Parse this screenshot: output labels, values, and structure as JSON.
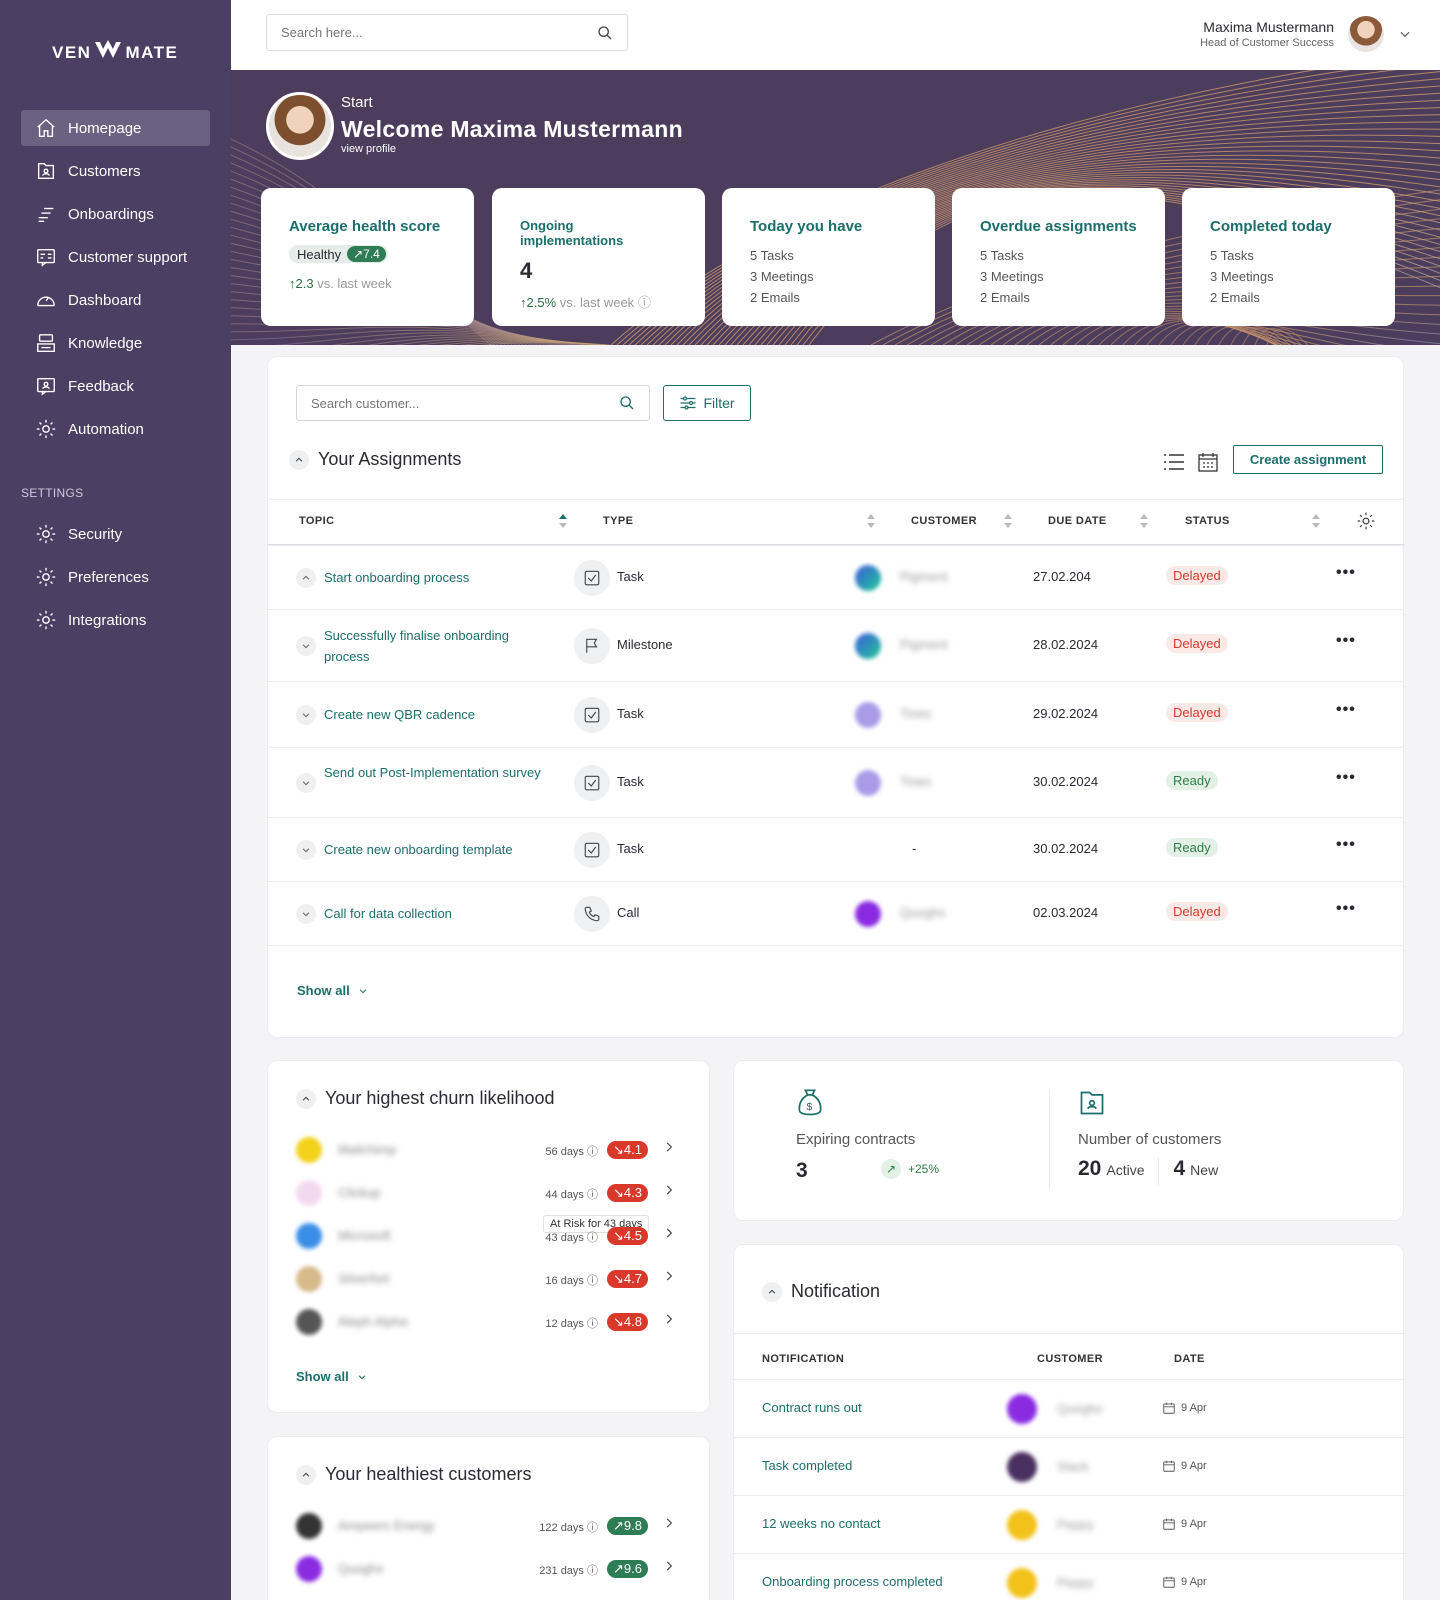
{
  "brand": {
    "logo_left": "VEN",
    "logo_right": "MATE"
  },
  "sidebar": {
    "items": [
      {
        "label": "Homepage",
        "icon": "home-icon"
      },
      {
        "label": "Customers",
        "icon": "customers-icon"
      },
      {
        "label": "Onboardings",
        "icon": "onboardings-icon"
      },
      {
        "label": "Customer support",
        "icon": "support-icon"
      },
      {
        "label": "Dashboard",
        "icon": "dashboard-icon"
      },
      {
        "label": "Knowledge",
        "icon": "knowledge-icon"
      },
      {
        "label": "Feedback",
        "icon": "feedback-icon"
      },
      {
        "label": "Automation",
        "icon": "automation-icon"
      }
    ],
    "settings_label": "SETTINGS",
    "settings_items": [
      {
        "label": "Security",
        "icon": "gear-icon"
      },
      {
        "label": "Preferences",
        "icon": "gear-icon"
      },
      {
        "label": "Integrations",
        "icon": "gear-icon"
      }
    ]
  },
  "topbar": {
    "search_placeholder": "Search here...",
    "user_name": "Maxima Mustermann",
    "user_role": "Head of Customer Success"
  },
  "hero": {
    "start": "Start",
    "welcome": "Welcome Maxima Mustermann",
    "view_profile": "view profile"
  },
  "stats": {
    "health": {
      "title": "Average health score",
      "label": "Healthy",
      "score": "7.4",
      "delta": "2.3",
      "delta_label": "vs. last week"
    },
    "ongoing": {
      "title": "Ongoing implementations",
      "value": "4",
      "delta": "2.5%",
      "delta_label": "vs. last week"
    },
    "today": {
      "title": "Today you have",
      "lines": [
        "5 Tasks",
        "3 Meetings",
        "2 Emails"
      ]
    },
    "overdue": {
      "title": "Overdue assignments",
      "lines": [
        "5 Tasks",
        "3 Meetings",
        "2 Emails"
      ]
    },
    "completed": {
      "title": "Completed today",
      "lines": [
        "5 Tasks",
        "3 Meetings",
        "2 Emails"
      ]
    }
  },
  "assignments": {
    "search_placeholder": "Search customer...",
    "filter_label": "Filter",
    "title": "Your Assignments",
    "create_label": "Create assignment",
    "columns": [
      "TOPIC",
      "TYPE",
      "CUSTOMER",
      "DUE DATE",
      "STATUS"
    ],
    "rows": [
      {
        "topic": "Start onboarding process",
        "type": "Task",
        "customer": "Pigment",
        "due": "27.02.204",
        "status": "Delayed"
      },
      {
        "topic": "Successfully finalise onboarding process",
        "type": "Milestone",
        "customer": "Pigment",
        "due": "28.02.2024",
        "status": "Delayed"
      },
      {
        "topic": "Create new QBR cadence",
        "type": "Task",
        "customer": "Tines",
        "due": "29.02.2024",
        "status": "Delayed"
      },
      {
        "topic": "Send out Post-Implementation survey",
        "type": "Task",
        "customer": "Tines",
        "due": "30.02.2024",
        "status": "Ready"
      },
      {
        "topic": "Create new onboarding template",
        "type": "Task",
        "customer": "-",
        "due": "30.02.2024",
        "status": "Ready"
      },
      {
        "topic": "Call for data collection",
        "type": "Call",
        "customer": "Quoghs",
        "due": "02.03.2024",
        "status": "Delayed"
      }
    ],
    "show_all": "Show all"
  },
  "churn": {
    "title": "Your highest churn likelihood",
    "rows": [
      {
        "name": "Mailchimp",
        "days": "56 days",
        "score": "4.1",
        "color": "#f2d21a"
      },
      {
        "name": "Clickup",
        "days": "44 days",
        "score": "4.3",
        "color": "#f3d9f0"
      },
      {
        "name": "Microsoft",
        "days": "43 days",
        "score": "4.5",
        "color": "#3a8ee8"
      },
      {
        "name": "Silverfort",
        "days": "16 days",
        "score": "4.7",
        "color": "#d8b98a"
      },
      {
        "name": "Aleph Alpha",
        "days": "12 days",
        "score": "4.8",
        "color": "#555555"
      }
    ],
    "tooltip": "At Risk for 43 days",
    "show_all": "Show all"
  },
  "healthiest": {
    "title": "Your healthiest customers",
    "rows": [
      {
        "name": "Ampeers Energy",
        "days": "122 days",
        "score": "9.8",
        "color": "#333333"
      },
      {
        "name": "Quoghs",
        "days": "231 days",
        "score": "9.6",
        "color": "#8a2be2"
      }
    ]
  },
  "kpis": {
    "expiring_label": "Expiring contracts",
    "expiring_value": "3",
    "expiring_trend": "+25%",
    "customers_label": "Number of customers",
    "active_value": "20",
    "active_label": "Active",
    "new_value": "4",
    "new_label": "New"
  },
  "notifications": {
    "title": "Notification",
    "columns": [
      "NOTIFICATION",
      "CUSTOMER",
      "DATE"
    ],
    "rows": [
      {
        "text": "Contract runs out",
        "customer": "Quoghs",
        "date": "9 Apr",
        "color": "#8a2be2"
      },
      {
        "text": "Task completed",
        "customer": "Slack",
        "date": "9 Apr",
        "color": "#4a3060"
      },
      {
        "text": "12 weeks no contact",
        "customer": "Peppy",
        "date": "9 Apr",
        "color": "#f2c21a"
      },
      {
        "text": "Onboarding process completed",
        "customer": "Peppy",
        "date": "9 Apr",
        "color": "#f2c21a"
      }
    ]
  },
  "colors": {
    "sidebar": "#4b3f63",
    "accent": "#1c6e6a",
    "delayed": "#d8392a",
    "ready": "#2f7d45"
  }
}
